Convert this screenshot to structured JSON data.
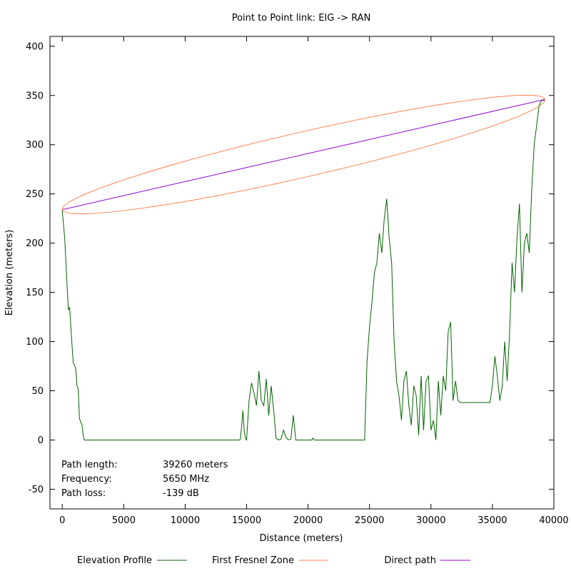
{
  "chart_data": {
    "type": "line",
    "title": "Point to Point link: EIG -> RAN",
    "xlabel": "Distance (meters)",
    "ylabel": "Elevation (meters)",
    "xlim": [
      -1000,
      40000
    ],
    "ylim": [
      -70,
      410
    ],
    "xticks": [
      0,
      5000,
      10000,
      15000,
      20000,
      25000,
      30000,
      35000,
      40000
    ],
    "yticks": [
      -50,
      0,
      50,
      100,
      150,
      200,
      250,
      300,
      350,
      400
    ],
    "legend_position": "bottom",
    "grid": false,
    "info": [
      {
        "label": "Path length:",
        "value": "39260 meters"
      },
      {
        "label": "Frequency:",
        "value": "5650 MHz"
      },
      {
        "label": "Path loss:",
        "value": "-139 dB"
      }
    ],
    "series": [
      {
        "name": "Elevation Profile",
        "color": "#006400",
        "x": [
          0,
          200,
          300,
          400,
          500,
          600,
          700,
          800,
          900,
          1000,
          1100,
          1200,
          1300,
          1400,
          1500,
          1600,
          1700,
          1800,
          1900,
          2000,
          14400,
          14500,
          14600,
          14700,
          14800,
          14900,
          15000,
          15200,
          15400,
          15600,
          15800,
          16000,
          16200,
          16400,
          16600,
          16800,
          17000,
          17200,
          17400,
          17600,
          17800,
          18000,
          18200,
          18400,
          18600,
          18800,
          19000,
          20300,
          20400,
          20500,
          24600,
          24800,
          25000,
          25200,
          25400,
          25600,
          25800,
          26000,
          26200,
          26400,
          26600,
          26800,
          27000,
          27200,
          27400,
          27600,
          27800,
          28000,
          28200,
          28400,
          28600,
          28800,
          29000,
          29200,
          29400,
          29600,
          29800,
          30000,
          30200,
          30400,
          30600,
          30800,
          31000,
          31200,
          31400,
          31600,
          31800,
          32000,
          32200,
          32400,
          32600,
          32800,
          33000,
          33200,
          34800,
          35000,
          35200,
          35400,
          35600,
          35800,
          36000,
          36200,
          36400,
          36600,
          36800,
          37000,
          37200,
          37400,
          37600,
          37800,
          38000,
          38200,
          38400,
          38600,
          38800,
          39000,
          39260
        ],
        "y": [
          233,
          205,
          180,
          155,
          132,
          135,
          115,
          95,
          78,
          76,
          72,
          55,
          52,
          22,
          18,
          16,
          5,
          0,
          0,
          0,
          0,
          1,
          15,
          30,
          10,
          2,
          0,
          40,
          58,
          48,
          35,
          70,
          40,
          35,
          62,
          25,
          55,
          30,
          2,
          0,
          1,
          10,
          3,
          0,
          1,
          25,
          0,
          0,
          2,
          0,
          0,
          80,
          115,
          140,
          170,
          180,
          210,
          190,
          225,
          245,
          205,
          180,
          100,
          60,
          45,
          20,
          60,
          70,
          35,
          15,
          55,
          45,
          5,
          65,
          10,
          60,
          65,
          10,
          20,
          0,
          60,
          25,
          65,
          50,
          110,
          120,
          40,
          60,
          40,
          38,
          38,
          38,
          38,
          38,
          38,
          55,
          85,
          65,
          40,
          55,
          100,
          60,
          110,
          180,
          150,
          205,
          240,
          150,
          200,
          210,
          190,
          255,
          300,
          320,
          340,
          345,
          345
        ]
      },
      {
        "name": "First Fresnel Zone",
        "color": "#ff7f50"
      },
      {
        "name": "Direct path",
        "color": "#9400d3",
        "x": [
          0,
          39260
        ],
        "y": [
          234,
          346
        ]
      }
    ]
  }
}
